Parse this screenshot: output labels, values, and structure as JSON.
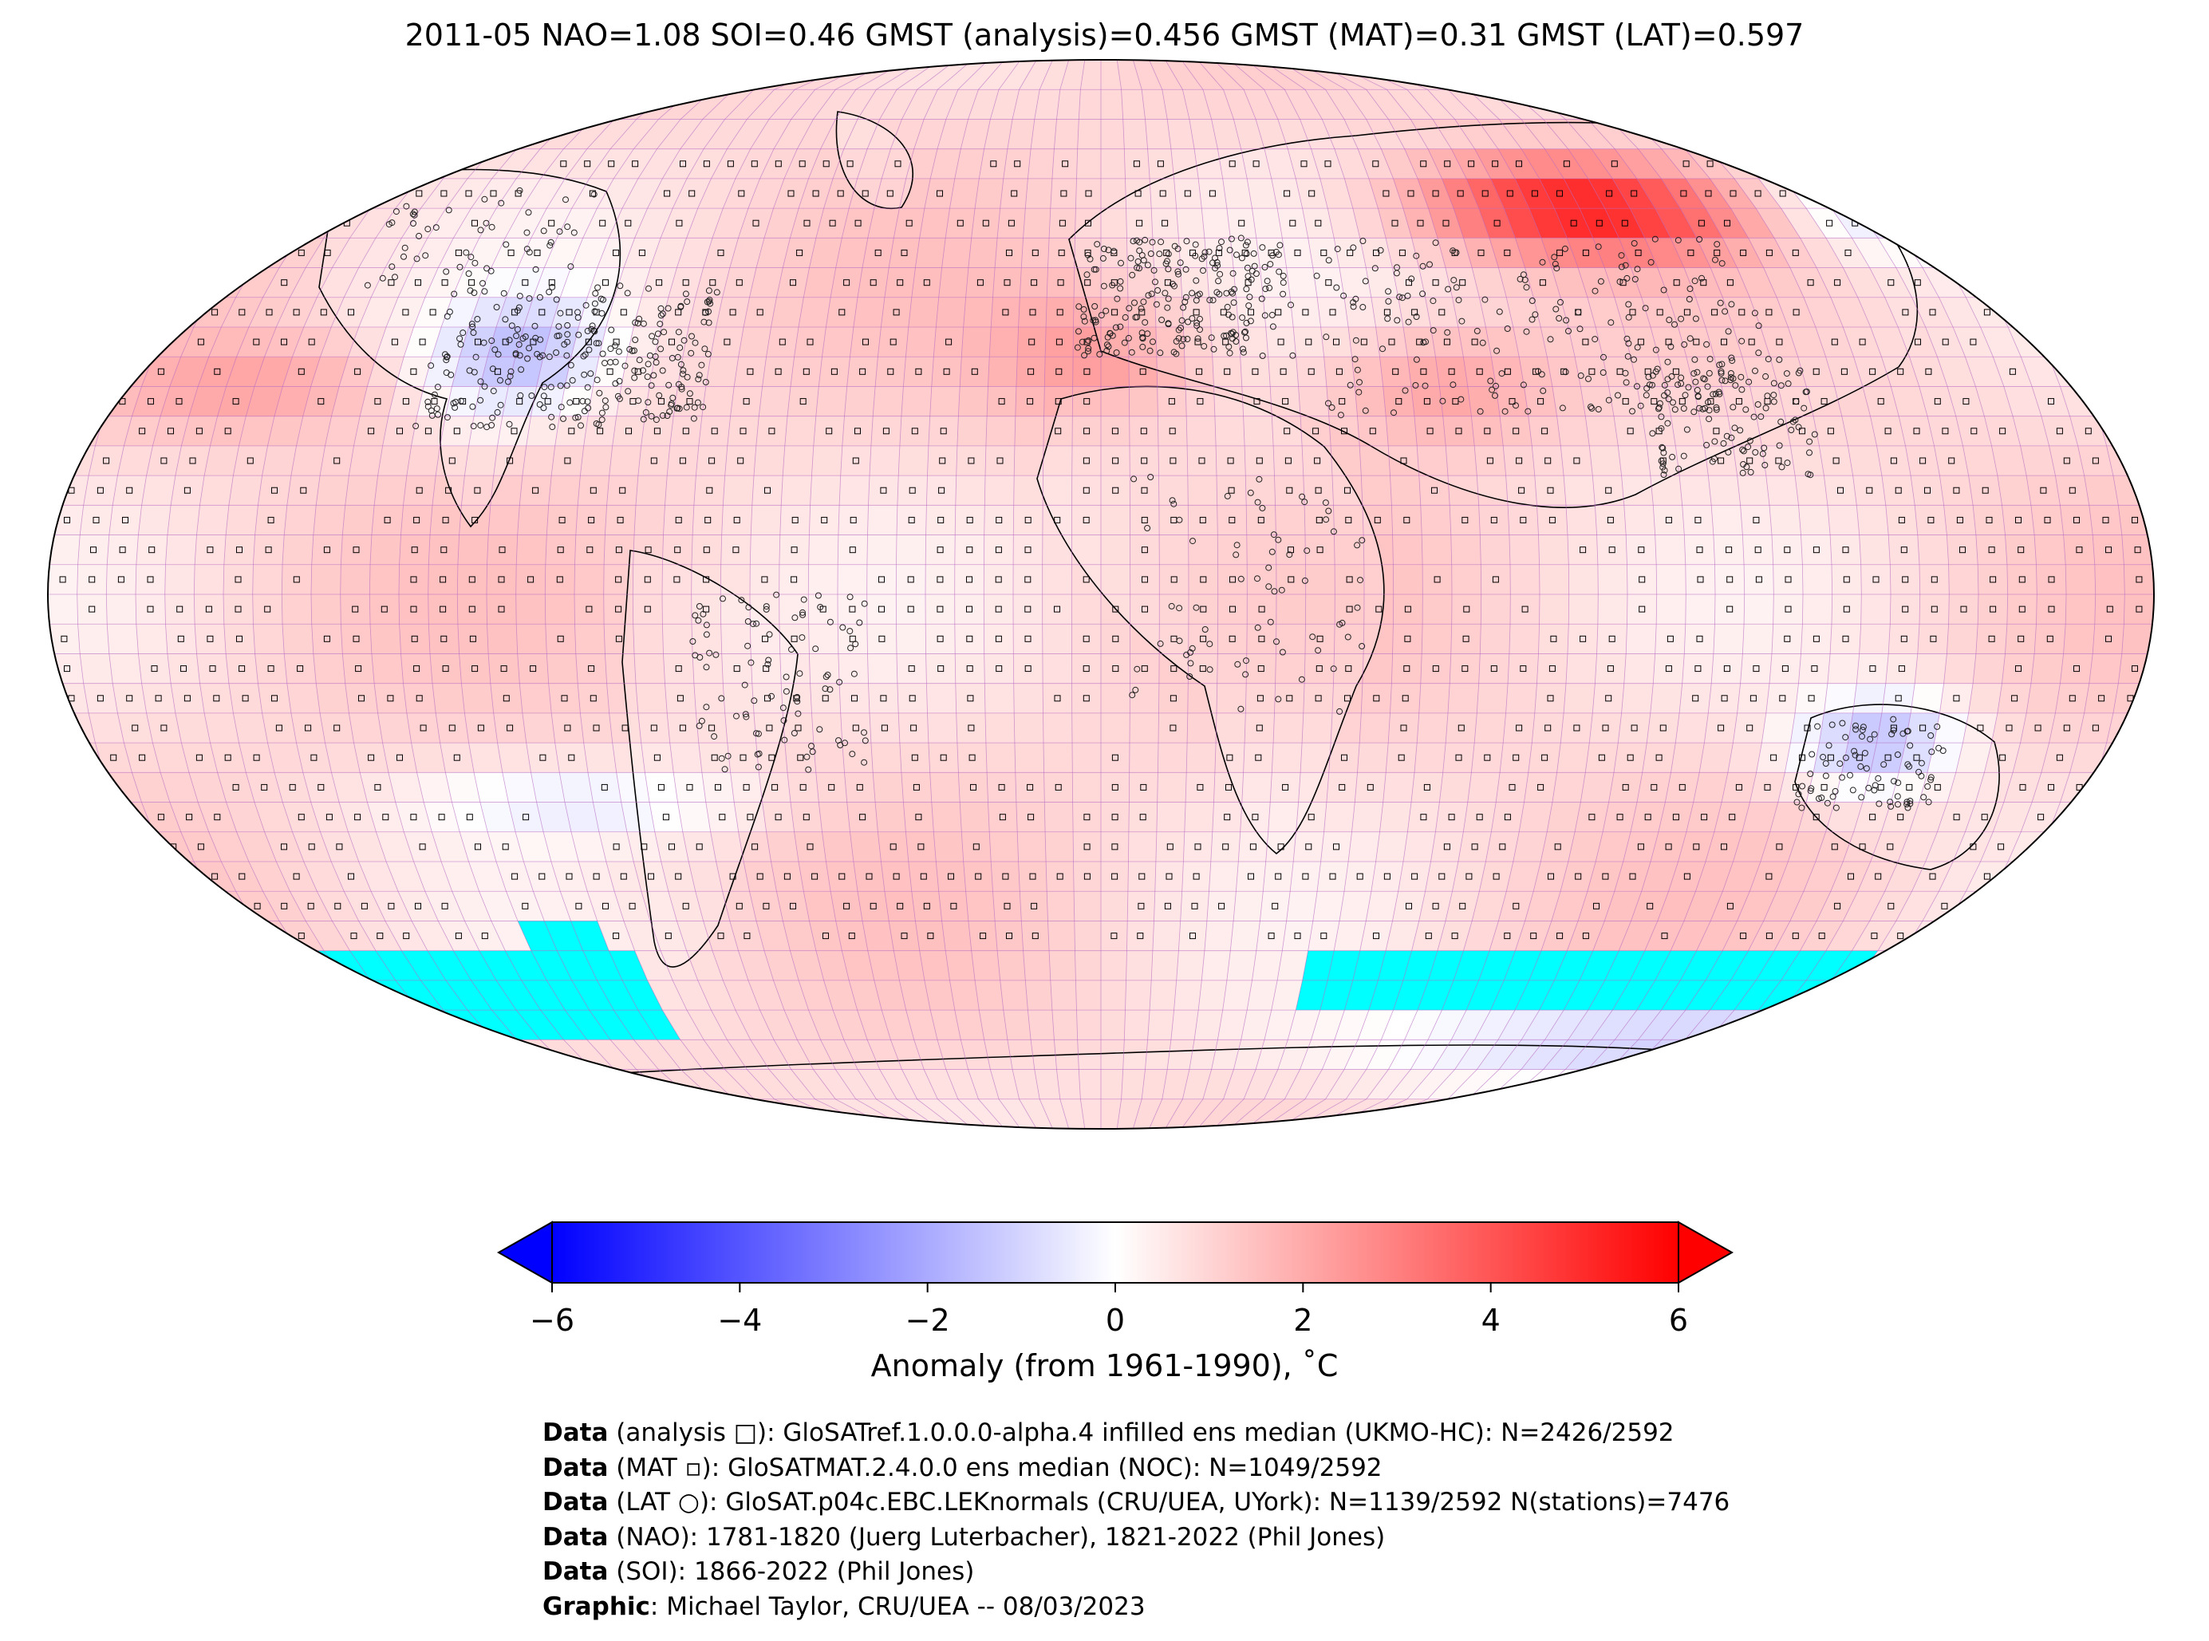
{
  "title": "2011-05 NAO=1.08 SOI=0.46 GMST (analysis)=0.456 GMST (MAT)=0.31 GMST (LAT)=0.597",
  "colorbar": {
    "ticks": [
      "−6",
      "−4",
      "−2",
      "0",
      "2",
      "4",
      "6"
    ],
    "tick_values": [
      -6,
      -4,
      -2,
      0,
      2,
      4,
      6
    ],
    "range": [
      -6,
      6
    ],
    "colormap": "bwr",
    "extend": "both",
    "label": "Anomaly (from 1961-1990), ˚C"
  },
  "colors": {
    "cold": "#0000ff",
    "neutral": "#ffffff",
    "warm": "#ff0000",
    "missing": "#00ffff",
    "gridlines": "#b060c0",
    "coastlines": "#000000"
  },
  "map": {
    "projection": "Robinson",
    "grid": "5-degree latitude-longitude cells",
    "markers": [
      "analysis □",
      "MAT ▫",
      "LAT ○"
    ]
  },
  "credits": [
    {
      "bold": "Data",
      "text": " (analysis □): GloSATref.1.0.0.0-alpha.4 infilled ens median (UKMO-HC): N=2426/2592"
    },
    {
      "bold": "Data",
      "text": " (MAT ▫): GloSATMAT.2.4.0.0 ens median (NOC): N=1049/2592"
    },
    {
      "bold": "Data",
      "text": " (LAT ○): GloSAT.p04c.EBC.LEKnormals (CRU/UEA, UYork): N=1139/2592 N(stations)=7476"
    },
    {
      "bold": "Data",
      "text": " (NAO): 1781-1820 (Juerg Luterbacher), 1821-2022 (Phil Jones)"
    },
    {
      "bold": "Data",
      "text": " (SOI): 1866-2022 (Phil Jones)"
    },
    {
      "bold": "Graphic",
      "text": ": Michael Taylor, CRU/UEA -- 08/03/2023"
    }
  ]
}
